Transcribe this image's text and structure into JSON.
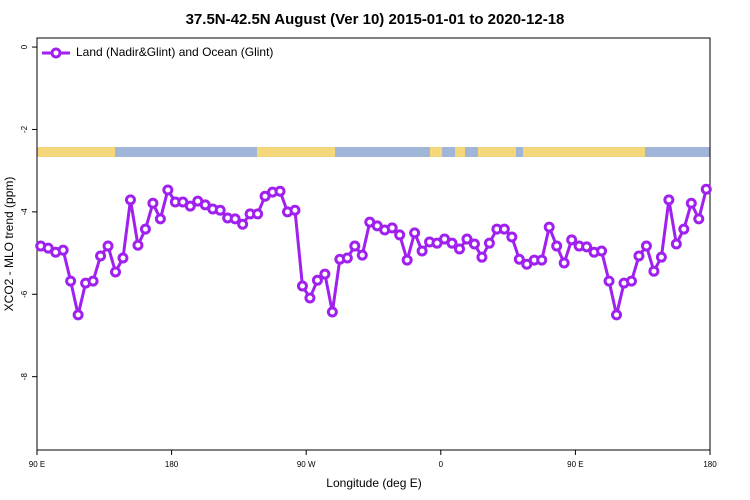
{
  "chart_data": {
    "type": "line",
    "title": "37.5N-42.5N August (Ver 10)   2015-01-01 to 2020-12-18",
    "x_label": "Longitude (deg E)",
    "y_label": "XCO2 - MLO trend (ppm)",
    "x": [
      92.5,
      97.5,
      102.5,
      107.5,
      112.5,
      117.5,
      122.5,
      127.5,
      132.5,
      137.5,
      142.5,
      147.5,
      152.5,
      157.5,
      162.5,
      167.5,
      172.5,
      177.5,
      182.5,
      187.5,
      192.5,
      197.5,
      202.5,
      207.5,
      212.5,
      217.5,
      222.5,
      227.5,
      232.5,
      237.5,
      242.5,
      247.5,
      252.5,
      257.5,
      262.5,
      267.5,
      272.5,
      277.5,
      282.5,
      287.5,
      292.5,
      297.5,
      302.5,
      307.5,
      312.5,
      317.5,
      322.5,
      327.5,
      332.5,
      337.5,
      342.5,
      347.5,
      352.5,
      357.5,
      362.5,
      367.5,
      372.5,
      377.5,
      382.5,
      387.5,
      392.5,
      397.5,
      402.5,
      407.5,
      412.5,
      417.5,
      422.5,
      427.5,
      432.5,
      437.5,
      442.5,
      447.5,
      452.5,
      457.5,
      462.5,
      467.5,
      472.5,
      477.5,
      482.5,
      487.5,
      492.5,
      497.5,
      502.5,
      507.5,
      512.5,
      517.5,
      522.5,
      527.5,
      532.5,
      537.5
    ],
    "series": [
      {
        "name": "Land (Nadir&Glint) and Ocean (Glint)",
        "color": "#a020f0",
        "values": [
          -4.83,
          -4.88,
          -4.98,
          -4.93,
          -5.68,
          -6.5,
          -5.73,
          -5.68,
          -5.07,
          -4.83,
          -5.46,
          -5.12,
          -3.71,
          -4.81,
          -4.42,
          -3.79,
          -4.17,
          -3.47,
          -3.76,
          -3.76,
          -3.86,
          -3.74,
          -3.83,
          -3.93,
          -3.96,
          -4.15,
          -4.17,
          -4.3,
          -4.05,
          -4.05,
          -3.62,
          -3.52,
          -3.5,
          -4.0,
          -3.96,
          -5.8,
          -6.09,
          -5.66,
          -5.51,
          -6.43,
          -5.15,
          -5.12,
          -4.83,
          -5.05,
          -4.25,
          -4.34,
          -4.44,
          -4.39,
          -4.56,
          -5.17,
          -4.51,
          -4.95,
          -4.73,
          -4.76,
          -4.66,
          -4.76,
          -4.9,
          -4.66,
          -4.78,
          -5.1,
          -4.76,
          -4.42,
          -4.42,
          -4.61,
          -5.15,
          -5.27,
          -5.17,
          -5.17,
          -4.37,
          -4.83,
          -5.24,
          -4.68,
          -4.83,
          -4.85,
          -4.98,
          -4.95,
          -5.68,
          -6.5,
          -5.73,
          -5.68,
          -5.07,
          -4.83,
          -5.44,
          -5.1,
          -3.71,
          -4.78,
          -4.42,
          -3.79,
          -4.17,
          -3.45
        ]
      }
    ],
    "xlim": [
      90,
      540
    ],
    "xticks": [
      {
        "value": 90,
        "label": "90 E"
      },
      180,
      {
        "value": 270,
        "label": "90 W"
      },
      {
        "value": 360,
        "label": "0"
      },
      {
        "value": 450,
        "label": "90 E"
      },
      {
        "value": 540,
        "label": "180"
      }
    ],
    "ylim": [
      -9.78,
      0.22
    ],
    "yticks": [
      0,
      -2,
      -4,
      -6,
      -8
    ],
    "legend": "top-left"
  }
}
